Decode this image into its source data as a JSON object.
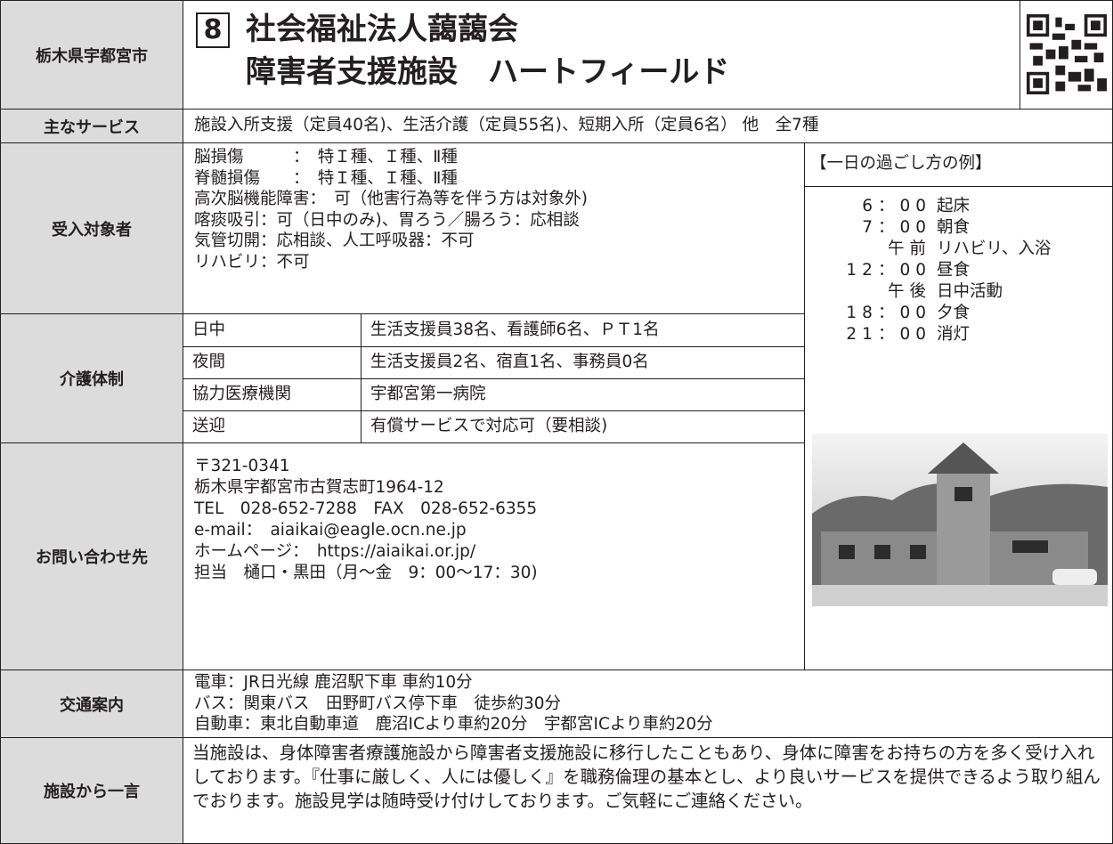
{
  "header": {
    "region": "栃木県宇都宮市",
    "number": "8",
    "title_lines": [
      "社会福祉法人藹藹会",
      "障害者支援施設　ハートフィールド"
    ]
  },
  "services": {
    "label": "主なサービス",
    "text": "施設入所支援（定員40名)、生活介護（定員55名)、短期入所（定員6名） 他　全7種"
  },
  "eligibility": {
    "label": "受入対象者",
    "lines": [
      "脳損傷　　　：　特Ｉ種、Ｉ種、Ⅱ種",
      "脊髄損傷　　：　特Ｉ種、Ｉ種、Ⅱ種",
      "高次脳機能障害：　可（他害行為等を伴う方は対象外)",
      "喀痰吸引：可（日中のみ)、胃ろう／腸ろう：応相談",
      "気管切開：応相談、人工呼吸器：不可",
      "リハビリ：不可"
    ]
  },
  "schedule": {
    "title": "【一日の過ごし方の例】",
    "items": [
      {
        "time": "6：00",
        "activity": "起床"
      },
      {
        "time": "7：00",
        "activity": "朝食"
      },
      {
        "time": "午前",
        "activity": "リハビリ、入浴"
      },
      {
        "time": "12：00",
        "activity": "昼食"
      },
      {
        "time": "午後",
        "activity": "日中活動"
      },
      {
        "time": "18：00",
        "activity": "夕食"
      },
      {
        "time": "21：00",
        "activity": "消灯"
      }
    ]
  },
  "care": {
    "label": "介護体制",
    "rows": [
      [
        "日中",
        "生活支援員38名、看護師6名、ＰＴ1名"
      ],
      [
        "夜間",
        "生活支援員2名、宿直1名、事務員0名"
      ],
      [
        "協力医療機関",
        "宇都宮第一病院"
      ],
      [
        "送迎",
        "有償サービスで対応可（要相談)"
      ]
    ]
  },
  "contact": {
    "label": "お問い合わせ先",
    "lines": [
      "〒321-0341",
      "栃木県宇都宮市古賀志町1964-12",
      "TEL　028-652-7288　FAX　028-652-6355",
      "e-mail：　aiaikai@eagle.ocn.ne.jp",
      "ホームページ：　https://aiaikai.or.jp/",
      "担当　樋口・黒田（月～金　9：00～17：30)"
    ]
  },
  "access": {
    "label": "交通案内",
    "lines": [
      "電車：JR日光線 鹿沼駅下車 車約10分",
      "バス：関東バス　田野町バス停下車　徒歩約30分",
      "自動車：東北自動車道　鹿沼ICより車約20分　宇都宮ICより車約20分"
    ]
  },
  "message": {
    "label": "施設から一言",
    "text": "当施設は、身体障害者療護施設から障害者支援施設に移行したこともあり、身体に障害をお持ちの方を多く受け入れしております。『仕事に厳しく、人には優しく』を職務倫理の基本とし、より良いサービスを提供できるよう取り組んでおります。施設見学は随時受け付けしております。ご気軽にご連絡ください。"
  }
}
